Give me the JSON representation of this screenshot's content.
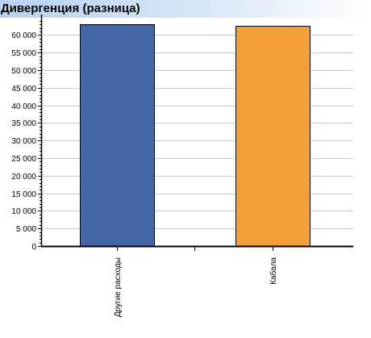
{
  "header": {
    "title": "Дивергенция (разница)"
  },
  "chart_data": {
    "type": "bar",
    "title": "Дивергенция (разница)",
    "xlabel": "",
    "ylabel": "",
    "categories": [
      "Другие расходы",
      "Кабала"
    ],
    "values": [
      63000,
      62600
    ],
    "colors": [
      "#4466a4",
      "#f2a03a"
    ],
    "ylim": [
      0,
      64000
    ],
    "yticks": [
      0,
      5000,
      10000,
      15000,
      20000,
      25000,
      30000,
      35000,
      40000,
      45000,
      50000,
      55000,
      60000
    ],
    "ytick_labels": [
      "0",
      "5 000",
      "10 000",
      "15 000",
      "20 000",
      "25 000",
      "30 000",
      "35 000",
      "40 000",
      "45 000",
      "50 000",
      "55 000",
      "60 000"
    ],
    "grid": true
  }
}
